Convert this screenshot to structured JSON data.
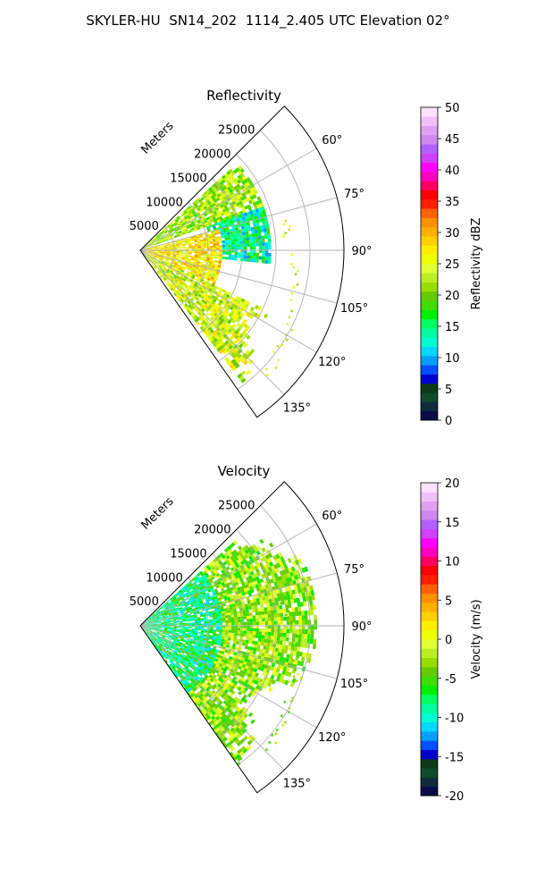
{
  "figure": {
    "suptitle": "SKYLER-HU  SN14_202  1114_2.405 UTC Elevation 02°"
  },
  "chart_data": [
    {
      "type": "heatmap",
      "projection": "polar-sector",
      "title": "Reflectivity",
      "radial_label": "Meters",
      "r_ticks": [
        5000,
        10000,
        15000,
        20000,
        25000
      ],
      "r_max": 30000,
      "theta_ticks_deg": [
        60,
        75,
        90,
        105,
        120,
        135
      ],
      "theta_range_deg": [
        45,
        145
      ],
      "grid": true,
      "colorbar": {
        "label": "Reflectivity dBZ",
        "min": 0,
        "max": 50,
        "ticks": [
          0,
          5,
          10,
          15,
          20,
          25,
          30,
          35,
          40,
          45,
          50
        ],
        "colors": [
          "#0a0a4a",
          "#102a3a",
          "#0f4a2a",
          "#0a3a1a",
          "#0000cc",
          "#0050ff",
          "#00a0ff",
          "#00d8ff",
          "#00ffd0",
          "#00ffa0",
          "#00ff60",
          "#00ee00",
          "#40dd00",
          "#66cc00",
          "#99dd00",
          "#bbee22",
          "#ddff33",
          "#eeff00",
          "#ffee00",
          "#ffd000",
          "#ffb000",
          "#ff9000",
          "#ff6000",
          "#ff2000",
          "#ff0000",
          "#ff0060",
          "#ff00c0",
          "#ff00ff",
          "#d040ff",
          "#b060ff",
          "#cc88ee",
          "#e0a0f0",
          "#f0c0f8",
          "#ffe0ff"
        ]
      },
      "field": {
        "description_bands": [
          {
            "theta": [
              48,
              70
            ],
            "r": [
              0,
              19000
            ],
            "value": 22
          },
          {
            "theta": [
              70,
              95
            ],
            "r": [
              10000,
              19000
            ],
            "value": 14
          },
          {
            "theta": [
              75,
              115
            ],
            "r": [
              0,
              12000
            ],
            "value": 27
          },
          {
            "theta": [
              115,
              142
            ],
            "r": [
              0,
              26000
            ],
            "value": 24
          }
        ]
      }
    },
    {
      "type": "heatmap",
      "projection": "polar-sector",
      "title": "Velocity",
      "radial_label": "Meters",
      "r_ticks": [
        5000,
        10000,
        15000,
        20000,
        25000
      ],
      "r_max": 30000,
      "theta_ticks_deg": [
        60,
        75,
        90,
        105,
        120,
        135
      ],
      "theta_range_deg": [
        45,
        145
      ],
      "grid": true,
      "colorbar": {
        "label": "Velocity (m/s)",
        "min": -20,
        "max": 20,
        "ticks": [
          -20,
          -15,
          -10,
          -5,
          0,
          5,
          10,
          15,
          20
        ],
        "colors": [
          "#0a0a4a",
          "#102a3a",
          "#0f4a2a",
          "#0a3a1a",
          "#0000cc",
          "#0050ff",
          "#00a0ff",
          "#00d8ff",
          "#00ffd0",
          "#00ffa0",
          "#00ff60",
          "#00ee00",
          "#40dd00",
          "#66cc00",
          "#99dd00",
          "#bbee22",
          "#ddff33",
          "#eeff00",
          "#ffee00",
          "#ffd000",
          "#ffb000",
          "#ff9000",
          "#ff6000",
          "#ff2000",
          "#ff0000",
          "#ff0060",
          "#ff00c0",
          "#ff00ff",
          "#d040ff",
          "#b060ff",
          "#cc88ee",
          "#e0a0f0",
          "#f0c0f8",
          "#ffe0ff"
        ]
      },
      "field": {
        "description_bands": [
          {
            "theta": [
              48,
              145
            ],
            "r": [
              0,
              12000
            ],
            "value": -8
          },
          {
            "theta": [
              48,
              145
            ],
            "r": [
              12000,
              26000
            ],
            "value": -3
          }
        ]
      }
    }
  ]
}
